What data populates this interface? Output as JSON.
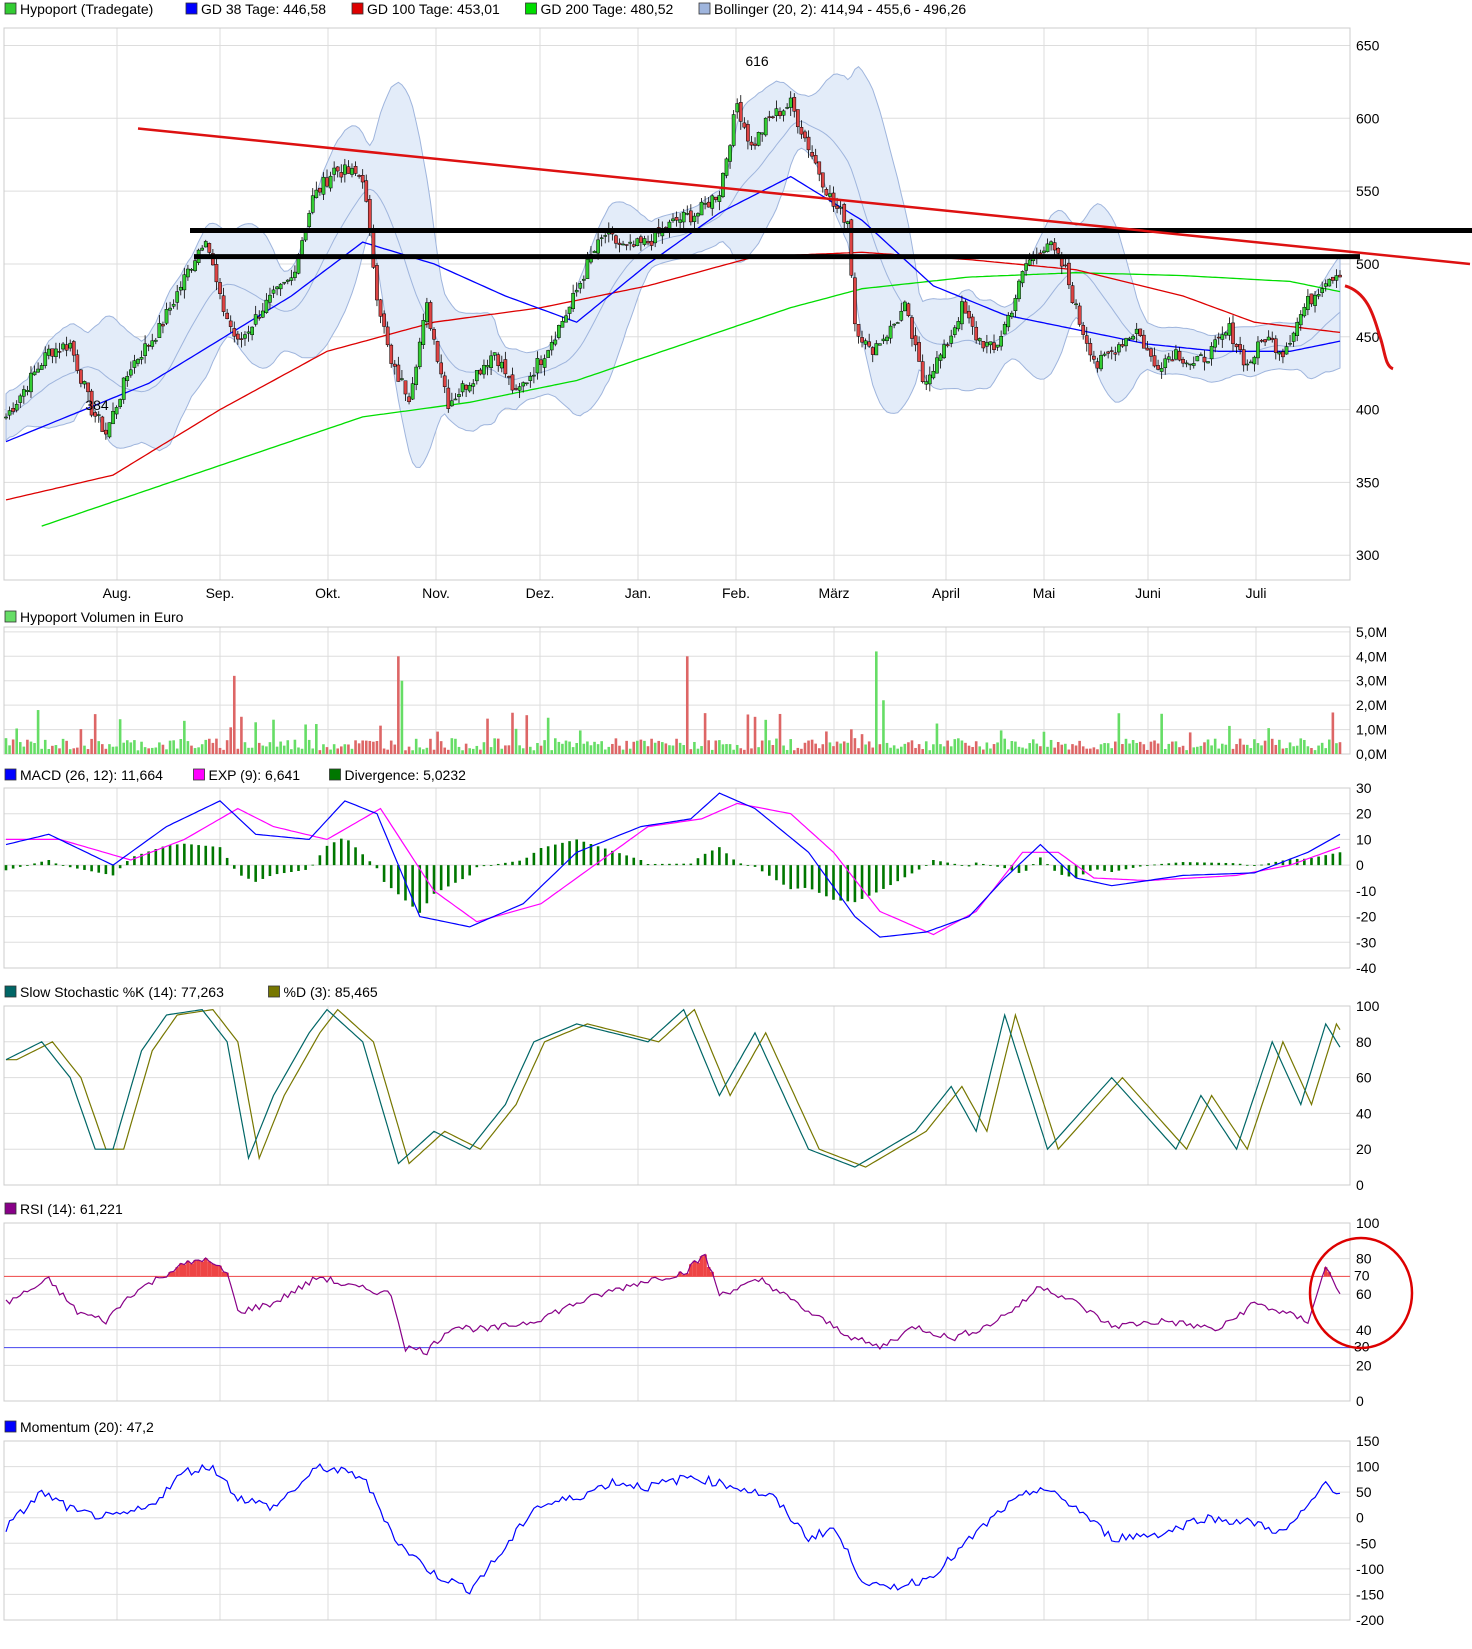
{
  "colors": {
    "grid": "#dddddd",
    "frame": "#cccccc",
    "up_candle": "#33cc33",
    "down_candle": "#dd4444",
    "gd38": "#0000ff",
    "gd100": "#dd0000",
    "gd200": "#00dd00",
    "bollinger_fill": "#e3ecf9",
    "bollinger_line": "#9fb5dd",
    "volume_up": "#66dd66",
    "volume_down": "#dd6666",
    "macd": "#0000ff",
    "exp": "#ff00ff",
    "divergence": "#007700",
    "stoch_k": "#006666",
    "stoch_d": "#777700",
    "rsi": "#880088",
    "rsi_70": "#ee4444",
    "rsi_30": "#4444ee",
    "momentum": "#0000ff",
    "trendline": "#dd1111",
    "annotation_black": "#000000"
  },
  "months": [
    "Aug.",
    "Sep.",
    "Okt.",
    "Nov.",
    "Dez.",
    "Jan.",
    "Feb.",
    "März",
    "April",
    "Mai",
    "Juni",
    "Juli"
  ],
  "chart_data": [
    {
      "type": "candlestick",
      "panel": "price",
      "legend": [
        {
          "label": "Hypoport (Tradegate)",
          "color": "#33cc33"
        },
        {
          "label": "GD 38 Tage: 446,58",
          "color": "#0000ff"
        },
        {
          "label": "GD 100 Tage: 453,01",
          "color": "#dd0000"
        },
        {
          "label": "GD 200 Tage: 480,52",
          "color": "#00dd00"
        },
        {
          "label": "Bollinger (20, 2): 414,94 - 455,6 - 496,26",
          "color": "#9fb5dd"
        }
      ],
      "y_ticks": [
        "650",
        "600",
        "550",
        "500",
        "450",
        "400",
        "350",
        "300"
      ],
      "ylim": [
        300,
        650
      ],
      "annotations": {
        "high_label": "616",
        "low_label": "384"
      },
      "price_anchors": [
        [
          0,
          395
        ],
        [
          12,
          440
        ],
        [
          18,
          445
        ],
        [
          24,
          400
        ],
        [
          28,
          384
        ],
        [
          35,
          430
        ],
        [
          43,
          455
        ],
        [
          50,
          490
        ],
        [
          56,
          520
        ],
        [
          60,
          475
        ],
        [
          65,
          445
        ],
        [
          72,
          470
        ],
        [
          80,
          490
        ],
        [
          86,
          545
        ],
        [
          92,
          565
        ],
        [
          100,
          560
        ],
        [
          104,
          480
        ],
        [
          108,
          430
        ],
        [
          113,
          410
        ],
        [
          118,
          470
        ],
        [
          124,
          405
        ],
        [
          130,
          420
        ],
        [
          137,
          440
        ],
        [
          143,
          410
        ],
        [
          150,
          435
        ],
        [
          158,
          470
        ],
        [
          164,
          505
        ],
        [
          168,
          520
        ],
        [
          174,
          510
        ],
        [
          180,
          515
        ],
        [
          188,
          530
        ],
        [
          194,
          535
        ],
        [
          200,
          550
        ],
        [
          205,
          610
        ],
        [
          209,
          580
        ],
        [
          214,
          600
        ],
        [
          220,
          610
        ],
        [
          226,
          575
        ],
        [
          232,
          540
        ],
        [
          236,
          530
        ],
        [
          238,
          460
        ],
        [
          242,
          440
        ],
        [
          248,
          455
        ],
        [
          252,
          470
        ],
        [
          257,
          420
        ],
        [
          263,
          440
        ],
        [
          268,
          470
        ],
        [
          272,
          450
        ],
        [
          277,
          440
        ],
        [
          282,
          470
        ],
        [
          286,
          500
        ],
        [
          292,
          515
        ],
        [
          297,
          495
        ],
        [
          301,
          460
        ],
        [
          306,
          430
        ],
        [
          312,
          445
        ],
        [
          317,
          455
        ],
        [
          322,
          430
        ],
        [
          328,
          440
        ],
        [
          333,
          430
        ],
        [
          338,
          440
        ],
        [
          343,
          455
        ],
        [
          348,
          430
        ],
        [
          353,
          450
        ],
        [
          358,
          440
        ],
        [
          364,
          470
        ],
        [
          370,
          490
        ],
        [
          374,
          495
        ]
      ],
      "ma_anchors": {
        "gd38": [
          [
            0,
            378
          ],
          [
            20,
            398
          ],
          [
            40,
            418
          ],
          [
            60,
            448
          ],
          [
            80,
            478
          ],
          [
            100,
            515
          ],
          [
            120,
            500
          ],
          [
            140,
            478
          ],
          [
            160,
            460
          ],
          [
            180,
            500
          ],
          [
            200,
            535
          ],
          [
            220,
            560
          ],
          [
            240,
            530
          ],
          [
            260,
            485
          ],
          [
            280,
            465
          ],
          [
            300,
            455
          ],
          [
            320,
            445
          ],
          [
            340,
            440
          ],
          [
            360,
            440
          ],
          [
            374,
            447
          ]
        ],
        "gd100": [
          [
            0,
            338
          ],
          [
            30,
            355
          ],
          [
            60,
            400
          ],
          [
            90,
            440
          ],
          [
            120,
            460
          ],
          [
            150,
            470
          ],
          [
            180,
            485
          ],
          [
            210,
            505
          ],
          [
            240,
            508
          ],
          [
            270,
            503
          ],
          [
            300,
            496
          ],
          [
            330,
            478
          ],
          [
            350,
            460
          ],
          [
            374,
            453
          ]
        ],
        "gd200": [
          [
            10,
            320
          ],
          [
            40,
            345
          ],
          [
            70,
            370
          ],
          [
            100,
            395
          ],
          [
            130,
            405
          ],
          [
            160,
            420
          ],
          [
            190,
            445
          ],
          [
            220,
            470
          ],
          [
            240,
            483
          ],
          [
            270,
            491
          ],
          [
            300,
            494
          ],
          [
            330,
            492
          ],
          [
            360,
            488
          ],
          [
            374,
            481
          ]
        ]
      }
    },
    {
      "type": "bar",
      "panel": "volume",
      "legend": [
        {
          "label": "Hypoport Volumen in Euro",
          "color": "#66dd66"
        }
      ],
      "y_ticks": [
        "5,0M",
        "4,0M",
        "3,0M",
        "2,0M",
        "1,0M",
        "0,0M"
      ],
      "ylim": [
        0,
        5000000
      ],
      "spikes": [
        [
          9,
          1800000
        ],
        [
          64,
          3200000
        ],
        [
          110,
          4000000
        ],
        [
          111,
          3000000
        ],
        [
          191,
          4000000
        ],
        [
          244,
          4200000
        ],
        [
          246,
          2200000
        ],
        [
          372,
          1700000
        ]
      ]
    },
    {
      "type": "line",
      "panel": "macd",
      "legend": [
        {
          "label": "MACD (26, 12): 11,664",
          "color": "#0000ff"
        },
        {
          "label": "EXP (9): 6,641",
          "color": "#ff00ff"
        },
        {
          "label": "Divergence: 5,0232",
          "color": "#007700"
        }
      ],
      "y_ticks": [
        "30",
        "20",
        "10",
        "0",
        "-10",
        "-20",
        "-30",
        "-40"
      ],
      "ylim": [
        -40,
        30
      ],
      "macd_anchors": [
        [
          0,
          8
        ],
        [
          12,
          12
        ],
        [
          30,
          0
        ],
        [
          45,
          15
        ],
        [
          60,
          25
        ],
        [
          70,
          12
        ],
        [
          85,
          10
        ],
        [
          95,
          25
        ],
        [
          104,
          20
        ],
        [
          116,
          -20
        ],
        [
          130,
          -24
        ],
        [
          145,
          -15
        ],
        [
          160,
          5
        ],
        [
          178,
          15
        ],
        [
          192,
          18
        ],
        [
          200,
          28
        ],
        [
          210,
          22
        ],
        [
          225,
          5
        ],
        [
          238,
          -20
        ],
        [
          245,
          -28
        ],
        [
          258,
          -26
        ],
        [
          270,
          -20
        ],
        [
          280,
          -5
        ],
        [
          290,
          8
        ],
        [
          300,
          -5
        ],
        [
          310,
          -8
        ],
        [
          330,
          -4
        ],
        [
          350,
          -3
        ],
        [
          365,
          5
        ],
        [
          374,
          12
        ]
      ],
      "exp_anchors": [
        [
          0,
          10
        ],
        [
          15,
          10
        ],
        [
          35,
          2
        ],
        [
          50,
          10
        ],
        [
          65,
          22
        ],
        [
          75,
          15
        ],
        [
          90,
          10
        ],
        [
          105,
          22
        ],
        [
          120,
          -10
        ],
        [
          132,
          -22
        ],
        [
          150,
          -15
        ],
        [
          165,
          0
        ],
        [
          180,
          15
        ],
        [
          195,
          18
        ],
        [
          205,
          24
        ],
        [
          220,
          20
        ],
        [
          232,
          5
        ],
        [
          245,
          -18
        ],
        [
          260,
          -27
        ],
        [
          272,
          -18
        ],
        [
          285,
          5
        ],
        [
          295,
          5
        ],
        [
          305,
          -5
        ],
        [
          320,
          -6
        ],
        [
          345,
          -4
        ],
        [
          360,
          0
        ],
        [
          374,
          7
        ]
      ]
    },
    {
      "type": "line",
      "panel": "stochastic",
      "legend": [
        {
          "label": "Slow Stochastic %K (14): 77,263",
          "color": "#006666"
        },
        {
          "label": "%D (3): 85,465",
          "color": "#777700"
        }
      ],
      "y_ticks": [
        "100",
        "80",
        "60",
        "40",
        "20",
        "0"
      ],
      "ylim": [
        0,
        100
      ],
      "k_anchors": [
        [
          0,
          70
        ],
        [
          10,
          80
        ],
        [
          18,
          60
        ],
        [
          25,
          20
        ],
        [
          30,
          20
        ],
        [
          38,
          75
        ],
        [
          45,
          95
        ],
        [
          55,
          98
        ],
        [
          62,
          80
        ],
        [
          68,
          15
        ],
        [
          75,
          50
        ],
        [
          85,
          85
        ],
        [
          90,
          98
        ],
        [
          100,
          80
        ],
        [
          110,
          12
        ],
        [
          120,
          30
        ],
        [
          130,
          20
        ],
        [
          140,
          45
        ],
        [
          148,
          80
        ],
        [
          160,
          90
        ],
        [
          180,
          80
        ],
        [
          190,
          98
        ],
        [
          200,
          50
        ],
        [
          210,
          85
        ],
        [
          225,
          20
        ],
        [
          238,
          10
        ],
        [
          255,
          30
        ],
        [
          265,
          55
        ],
        [
          272,
          30
        ],
        [
          280,
          95
        ],
        [
          292,
          20
        ],
        [
          310,
          60
        ],
        [
          328,
          20
        ],
        [
          335,
          50
        ],
        [
          345,
          20
        ],
        [
          355,
          80
        ],
        [
          363,
          45
        ],
        [
          370,
          90
        ],
        [
          374,
          77
        ]
      ],
      "d_offset": 3
    },
    {
      "type": "line",
      "panel": "rsi",
      "legend": [
        {
          "label": "RSI (14): 61,221",
          "color": "#880088"
        }
      ],
      "y_ticks": [
        "100",
        "80",
        "60",
        "40",
        "20",
        "0"
      ],
      "ylim": [
        0,
        100
      ],
      "reference_lines": [
        {
          "value": 70,
          "label": "70"
        },
        {
          "value": 30,
          "label": "30"
        }
      ],
      "rsi_anchors": [
        [
          0,
          55
        ],
        [
          12,
          68
        ],
        [
          20,
          50
        ],
        [
          28,
          45
        ],
        [
          35,
          60
        ],
        [
          48,
          75
        ],
        [
          55,
          80
        ],
        [
          62,
          72
        ],
        [
          65,
          50
        ],
        [
          75,
          55
        ],
        [
          88,
          70
        ],
        [
          95,
          65
        ],
        [
          108,
          60
        ],
        [
          112,
          30
        ],
        [
          118,
          28
        ],
        [
          125,
          42
        ],
        [
          135,
          40
        ],
        [
          148,
          45
        ],
        [
          160,
          55
        ],
        [
          170,
          62
        ],
        [
          180,
          68
        ],
        [
          190,
          72
        ],
        [
          196,
          82
        ],
        [
          200,
          60
        ],
        [
          212,
          68
        ],
        [
          225,
          50
        ],
        [
          238,
          35
        ],
        [
          245,
          30
        ],
        [
          255,
          42
        ],
        [
          265,
          35
        ],
        [
          275,
          42
        ],
        [
          285,
          55
        ],
        [
          290,
          65
        ],
        [
          300,
          55
        ],
        [
          310,
          42
        ],
        [
          325,
          45
        ],
        [
          340,
          40
        ],
        [
          350,
          55
        ],
        [
          365,
          45
        ],
        [
          370,
          75
        ],
        [
          374,
          61
        ]
      ]
    },
    {
      "type": "line",
      "panel": "momentum",
      "legend": [
        {
          "label": "Momentum (20): 47,2",
          "color": "#0000ff"
        }
      ],
      "y_ticks": [
        "150",
        "100",
        "50",
        "0",
        "-50",
        "-100",
        "-150",
        "-200"
      ],
      "ylim": [
        -200,
        150
      ],
      "mom_anchors": [
        [
          0,
          -20
        ],
        [
          10,
          50
        ],
        [
          20,
          10
        ],
        [
          30,
          0
        ],
        [
          40,
          20
        ],
        [
          50,
          90
        ],
        [
          58,
          100
        ],
        [
          65,
          40
        ],
        [
          75,
          20
        ],
        [
          88,
          100
        ],
        [
          100,
          80
        ],
        [
          110,
          -50
        ],
        [
          120,
          -110
        ],
        [
          130,
          -140
        ],
        [
          140,
          -60
        ],
        [
          148,
          20
        ],
        [
          160,
          40
        ],
        [
          170,
          70
        ],
        [
          180,
          60
        ],
        [
          192,
          80
        ],
        [
          205,
          60
        ],
        [
          215,
          40
        ],
        [
          225,
          -40
        ],
        [
          232,
          -20
        ],
        [
          240,
          -120
        ],
        [
          246,
          -140
        ],
        [
          258,
          -120
        ],
        [
          265,
          -80
        ],
        [
          272,
          -30
        ],
        [
          280,
          20
        ],
        [
          290,
          60
        ],
        [
          300,
          20
        ],
        [
          310,
          -40
        ],
        [
          325,
          -30
        ],
        [
          335,
          0
        ],
        [
          350,
          -10
        ],
        [
          358,
          -30
        ],
        [
          365,
          20
        ],
        [
          370,
          70
        ],
        [
          374,
          47
        ]
      ]
    }
  ]
}
